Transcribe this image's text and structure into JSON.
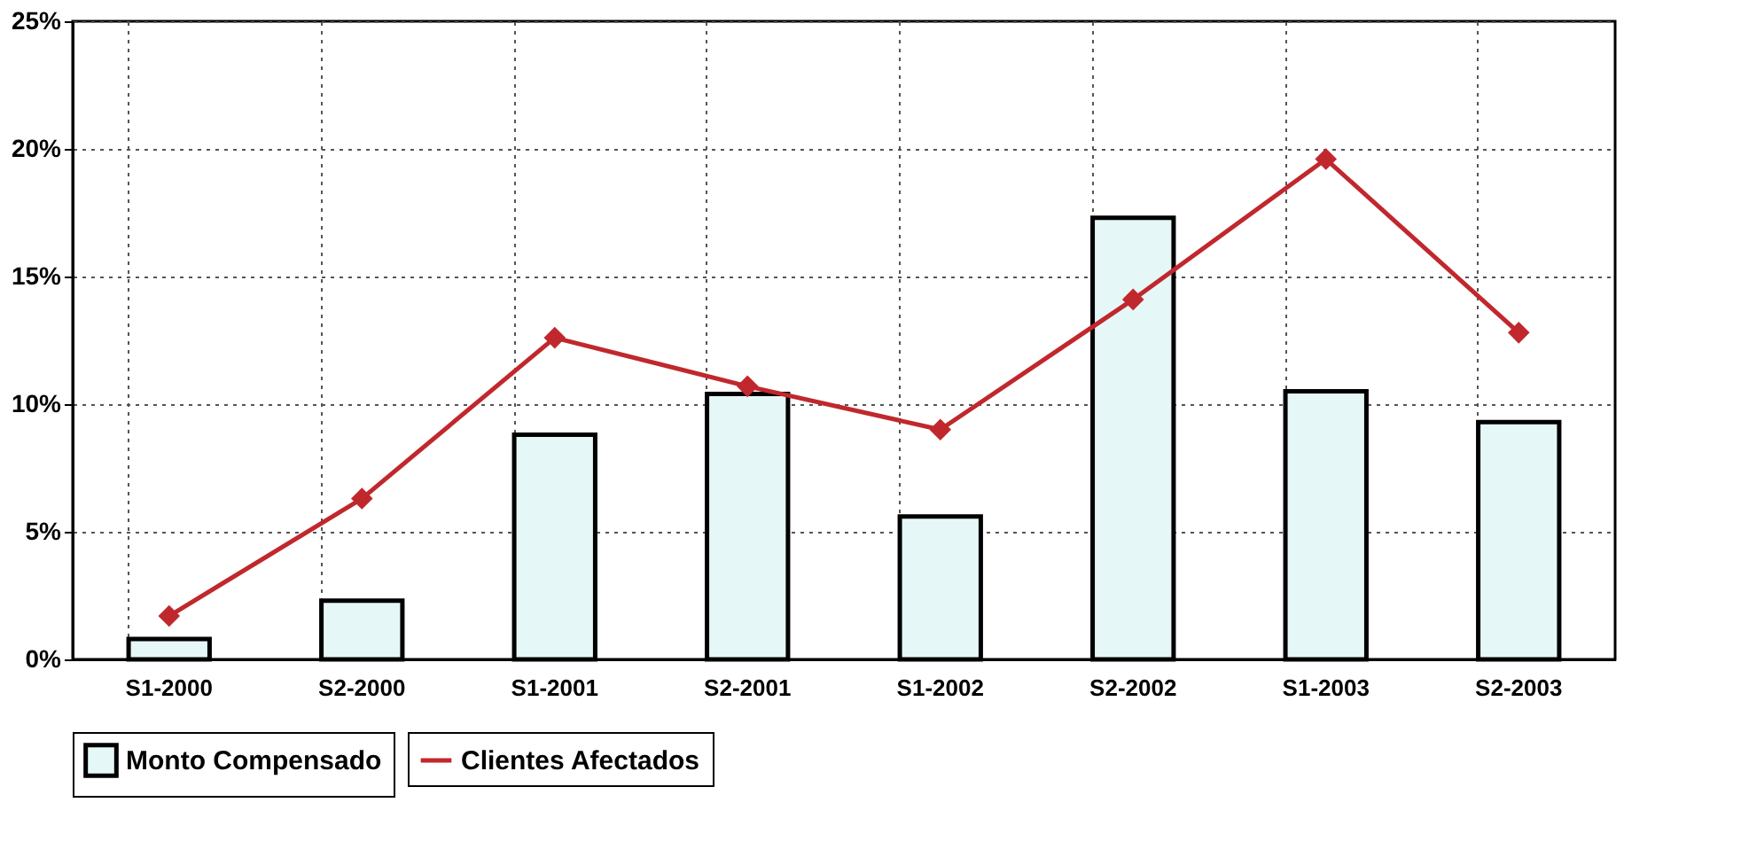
{
  "chart_data": {
    "type": "bar",
    "categories": [
      "S1-2000",
      "S2-2000",
      "S1-2001",
      "S2-2001",
      "S1-2002",
      "S2-2002",
      "S1-2003",
      "S2-2003"
    ],
    "series": [
      {
        "name": "Monto Compensado",
        "color": "#e6f7f7",
        "values": [
          0.8,
          2.3,
          8.8,
          10.4,
          5.6,
          17.3,
          10.5,
          9.3
        ]
      },
      {
        "name": "Clientes Afectados",
        "type": "line",
        "color": "#c0282d",
        "values": [
          1.7,
          6.3,
          12.6,
          10.7,
          9.0,
          14.1,
          19.6,
          12.8
        ]
      }
    ],
    "ylim": [
      0,
      25
    ],
    "yticks": [
      {
        "value": 0,
        "label": "0%"
      },
      {
        "value": 5,
        "label": "5%"
      },
      {
        "value": 10,
        "label": "10%"
      },
      {
        "value": 15,
        "label": "15%"
      },
      {
        "value": 20,
        "label": "20%"
      },
      {
        "value": 25,
        "label": "25%"
      }
    ],
    "grid": true,
    "legend": "bottom",
    "marker": "diamond",
    "line_style": "solid"
  }
}
